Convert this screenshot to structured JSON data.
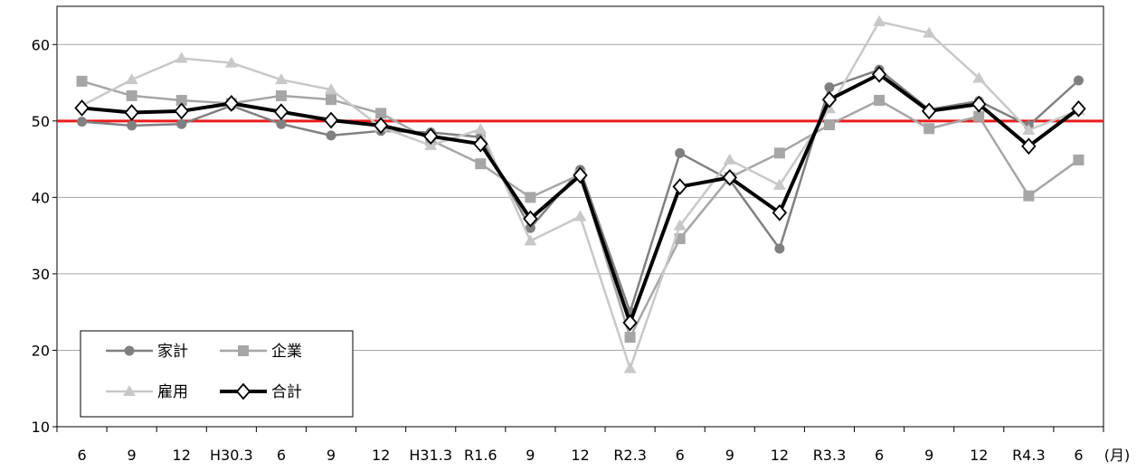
{
  "chart_data": {
    "type": "line",
    "categories": [
      "6",
      "9",
      "12",
      "H30.3",
      "6",
      "9",
      "12",
      "H31.3",
      "R1.6",
      "9",
      "12",
      "R2.3",
      "6",
      "9",
      "12",
      "R3.3",
      "6",
      "9",
      "12",
      "R4.3",
      "6"
    ],
    "x_unit_label": "(月)",
    "ylim": [
      10,
      65
    ],
    "yticks": [
      10,
      20,
      30,
      40,
      50,
      60
    ],
    "grid": true,
    "legend_position": "bottom-left",
    "reference_line": {
      "value": 50,
      "color": "#e81c1c"
    },
    "series": [
      {
        "name": "家計",
        "color": "#808080",
        "marker": "circle",
        "values": [
          49.9,
          49.4,
          49.6,
          52.0,
          49.6,
          48.1,
          48.7,
          48.5,
          47.9,
          36.0,
          43.6,
          25.0,
          45.8,
          42.3,
          33.3,
          54.4,
          56.7,
          51.5,
          52.6,
          49.4,
          55.3
        ]
      },
      {
        "name": "企業",
        "color": "#a6a6a6",
        "marker": "square",
        "values": [
          55.2,
          53.3,
          52.7,
          52.3,
          53.3,
          52.8,
          51.0,
          47.5,
          44.4,
          40.0,
          43.0,
          21.7,
          34.6,
          42.6,
          45.8,
          49.5,
          52.7,
          49.0,
          50.6,
          40.2,
          44.9
        ]
      },
      {
        "name": "雇用",
        "color": "#c8c8c8",
        "marker": "triangle",
        "values": [
          52.0,
          55.4,
          58.2,
          57.6,
          55.4,
          54.1,
          49.2,
          46.8,
          48.9,
          34.3,
          37.5,
          17.6,
          36.3,
          44.9,
          41.6,
          51.6,
          63.0,
          61.5,
          55.6,
          48.8,
          51.4
        ]
      },
      {
        "name": "合計",
        "color": "#000000",
        "marker": "diamond",
        "values": [
          51.7,
          51.1,
          51.3,
          52.3,
          51.2,
          50.1,
          49.4,
          48.0,
          47.0,
          37.2,
          42.9,
          23.6,
          41.4,
          42.6,
          38.0,
          52.8,
          56.1,
          51.3,
          52.2,
          46.7,
          51.6
        ]
      }
    ]
  }
}
